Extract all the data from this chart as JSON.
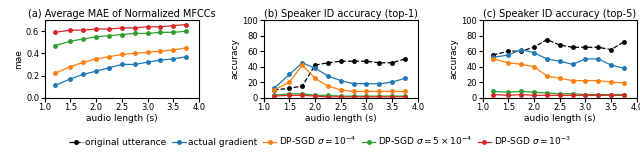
{
  "x": [
    1.2,
    1.5,
    1.75,
    2.0,
    2.25,
    2.5,
    2.75,
    3.0,
    3.25,
    3.5,
    3.75
  ],
  "mae_actual_gradient": [
    0.11,
    0.17,
    0.21,
    0.24,
    0.27,
    0.3,
    0.3,
    0.32,
    0.34,
    0.35,
    0.37
  ],
  "mae_dp_sgd_1e4": [
    0.22,
    0.28,
    0.32,
    0.35,
    0.37,
    0.39,
    0.4,
    0.41,
    0.42,
    0.43,
    0.45
  ],
  "mae_dp_sgd_5e4": [
    0.47,
    0.51,
    0.53,
    0.55,
    0.56,
    0.57,
    0.58,
    0.58,
    0.59,
    0.59,
    0.6
  ],
  "mae_dp_sgd_1e3": [
    0.59,
    0.61,
    0.61,
    0.62,
    0.62,
    0.63,
    0.63,
    0.64,
    0.64,
    0.65,
    0.66
  ],
  "top1_original": [
    10,
    12,
    15,
    42,
    45,
    47,
    47,
    47,
    45,
    45,
    50
  ],
  "top1_actual_gradient": [
    12,
    30,
    45,
    38,
    28,
    22,
    18,
    18,
    18,
    20,
    25
  ],
  "top1_dp_sgd_1e4": [
    10,
    20,
    42,
    25,
    15,
    10,
    8,
    8,
    8,
    8,
    8
  ],
  "top1_dp_sgd_5e4": [
    3,
    5,
    5,
    3,
    3,
    2,
    2,
    2,
    2,
    2,
    2
  ],
  "top1_dp_sgd_1e3": [
    2,
    3,
    3,
    2,
    1,
    1,
    1,
    1,
    1,
    1,
    1
  ],
  "top5_original": [
    55,
    60,
    60,
    65,
    75,
    68,
    65,
    65,
    65,
    62,
    72
  ],
  "top5_actual_gradient": [
    52,
    55,
    62,
    58,
    50,
    47,
    43,
    50,
    50,
    42,
    38
  ],
  "top5_dp_sgd_1e4": [
    50,
    45,
    43,
    40,
    28,
    25,
    22,
    22,
    22,
    20,
    19
  ],
  "top5_dp_sgd_5e4": [
    8,
    7,
    8,
    7,
    6,
    5,
    5,
    4,
    4,
    4,
    4
  ],
  "top5_dp_sgd_1e3": [
    4,
    3,
    4,
    3,
    3,
    3,
    3,
    3,
    3,
    3,
    3
  ],
  "colors": {
    "original": "#000000",
    "actual_gradient": "#1f77b4",
    "dp_sgd_1e4": "#ff7f0e",
    "dp_sgd_5e4": "#2ca02c",
    "dp_sgd_1e3": "#d62728"
  },
  "title_a": "(a) Average MAE of Normalized MFCCs",
  "title_b": "(b) Speaker ID accuracy (top-1)",
  "title_c": "(c) Speaker ID accuracy (top-5)",
  "xlabel": "audio length (s)",
  "ylabel_a": "mae",
  "ylabel_bc": "accuracy",
  "legend_labels": [
    "original utterance",
    "actual gradient",
    "DP-SGD $\\sigma = 10^{-4}$",
    "DP-SGD $\\sigma = 5 \\times 10^{-4}$",
    "DP-SGD $\\sigma = 10^{-3}$"
  ],
  "xlim": [
    1.0,
    4.0
  ],
  "ylim_a": [
    0.0,
    0.7
  ],
  "ylim_bc": [
    0,
    100
  ],
  "title_fontsize": 7.0,
  "label_fontsize": 6.5,
  "tick_fontsize": 6.0,
  "legend_fontsize": 6.5
}
